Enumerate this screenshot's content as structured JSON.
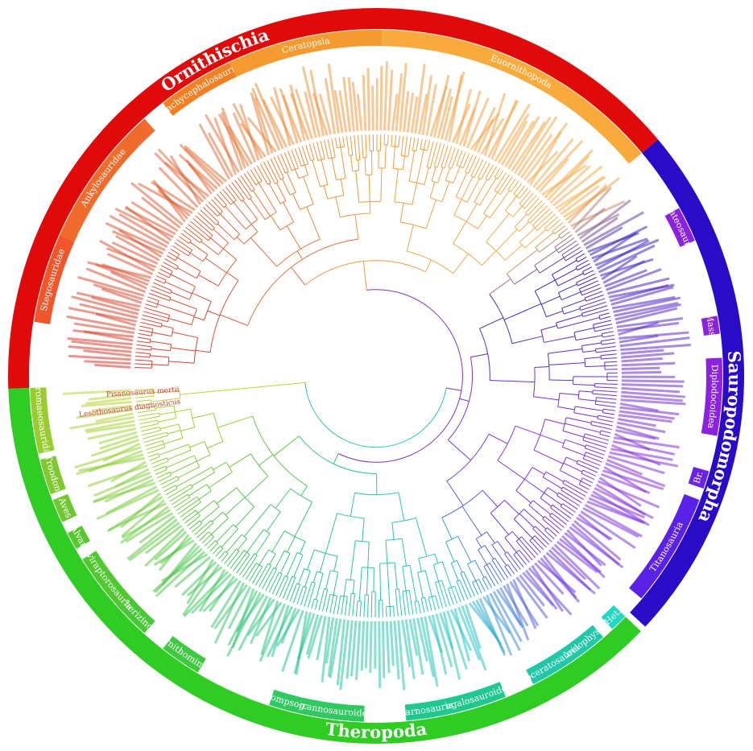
{
  "major_clades": [
    {
      "label": "Ornithischia",
      "color": "#e00a0a"
    },
    {
      "label": "Sauropodomorpha",
      "color": "#2a0bc8"
    },
    {
      "label": "Theropoda",
      "color": "#2fcc23"
    }
  ],
  "subclades": [
    {
      "label": "Stegosauridae",
      "color": "#f0562a"
    },
    {
      "label": "Ankylosauridae",
      "color": "#f06a2c"
    },
    {
      "label": "Pachycephalosauria",
      "color": "#f27f22"
    },
    {
      "label": "Ceratopsia",
      "color": "#f59a2e"
    },
    {
      "label": "Euornithopoda",
      "color": "#f8aa3a"
    },
    {
      "label": "Plateosauria",
      "color": "#8a22e0"
    },
    {
      "label": "Mass.",
      "color": "#8a22e0"
    },
    {
      "label": "Diplodocoidea",
      "color": "#8a22e0"
    },
    {
      "label": "Br.",
      "color": "#6a22e6"
    },
    {
      "label": "Titanosauria",
      "color": "#5a22e6"
    },
    {
      "label": "Het.",
      "color": "#20d8c4"
    },
    {
      "label": "Coelophys.",
      "color": "#20c8a8"
    },
    {
      "label": "Neoceratosauria",
      "color": "#20c8a8"
    },
    {
      "label": "Megalosauroidea",
      "color": "#20c890"
    },
    {
      "label": "Carnosauria",
      "color": "#20c890"
    },
    {
      "label": "Tyrannosauroidea",
      "color": "#30c860"
    },
    {
      "label": "Compsog.",
      "color": "#30c860"
    },
    {
      "label": "Ornithomimo.",
      "color": "#40c840"
    },
    {
      "label": "Therizino.",
      "color": "#48c838"
    },
    {
      "label": "Oviraptorosauria",
      "color": "#50c830"
    },
    {
      "label": "Alvar.",
      "color": "#58c830"
    },
    {
      "label": "Aves",
      "color": "#70c830"
    },
    {
      "label": "Troodon.",
      "color": "#80c830"
    },
    {
      "label": "Dromaeosauridae",
      "color": "#98cc30"
    }
  ],
  "tips": [
    {
      "label": "Lesothosaurus diagnosticus",
      "color": "#d83a30"
    },
    {
      "label": "Pisanosaurus mertii",
      "color": "#d83a30"
    }
  ]
}
